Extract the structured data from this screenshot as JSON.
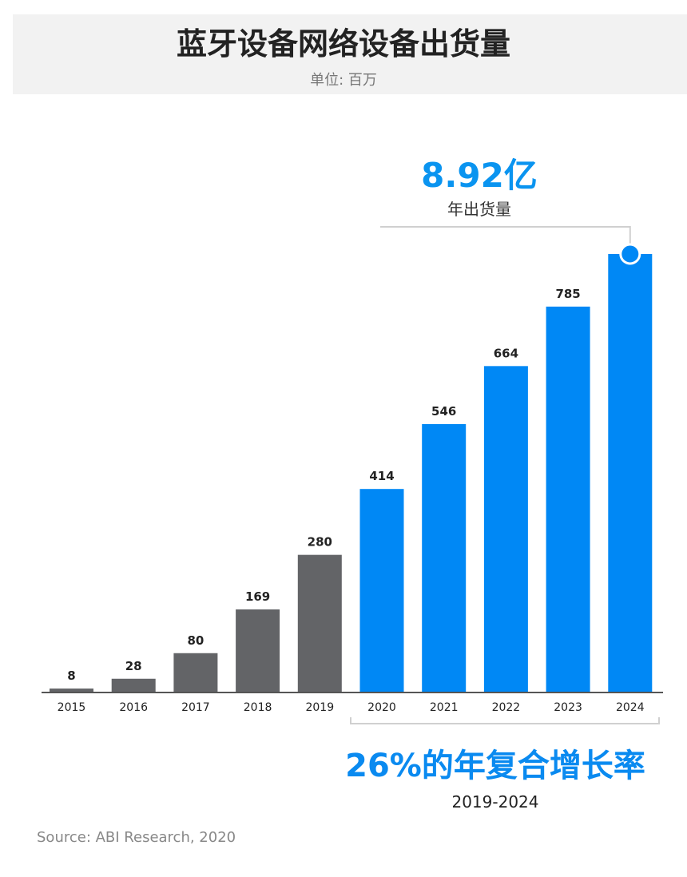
{
  "chart_data": {
    "type": "bar",
    "title": "蓝牙设备网络设备出货量",
    "subtitle": "单位: 百万",
    "categories": [
      "2015",
      "2016",
      "2017",
      "2018",
      "2019",
      "2020",
      "2021",
      "2022",
      "2023",
      "2024"
    ],
    "values": [
      8,
      28,
      80,
      169,
      280,
      414,
      546,
      664,
      785,
      892
    ],
    "data_labels": [
      "8",
      "28",
      "80",
      "169",
      "280",
      "414",
      "546",
      "664",
      "785",
      ""
    ],
    "ylim": [
      0,
      892
    ],
    "grid": false,
    "colors": {
      "historical": "#636467",
      "forecast": "#0088f5"
    },
    "forecast_from": "2020",
    "annotations": {
      "highlight_value": "8.92亿",
      "highlight_label": "年出货量",
      "cagr": "26%的年复合增长率",
      "cagr_period": "2019-2024"
    },
    "source": "Source: ABI Research, 2020"
  }
}
